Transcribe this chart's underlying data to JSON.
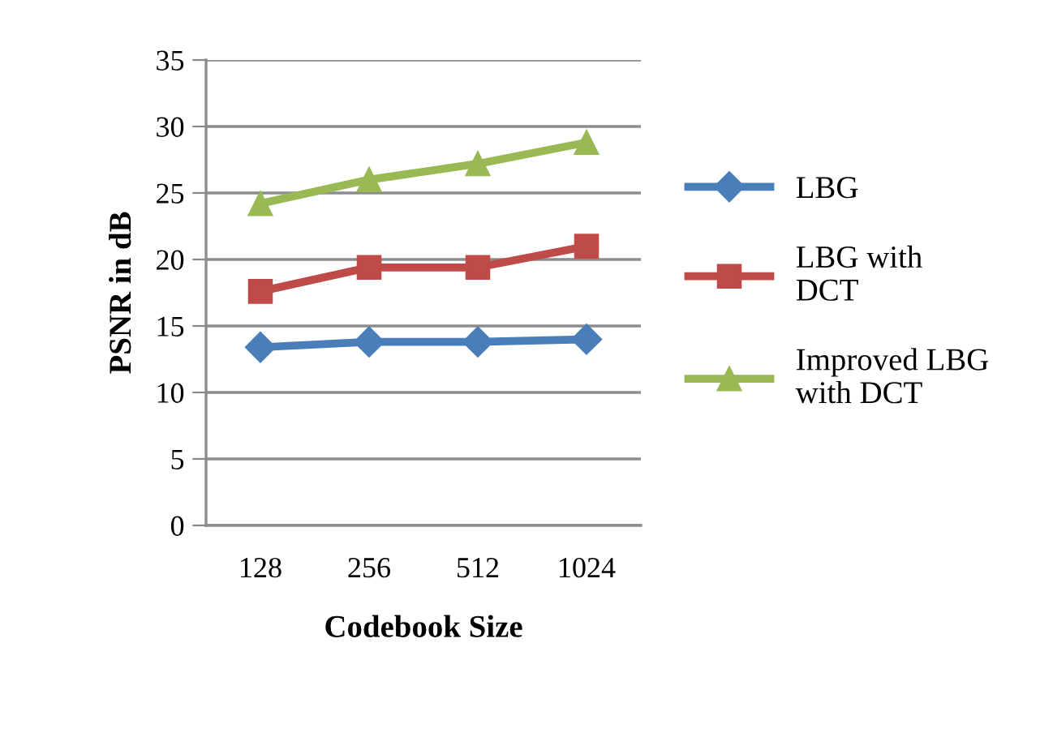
{
  "chart_data": {
    "type": "line",
    "xlabel": "Codebook Size",
    "ylabel": "PSNR in dB",
    "categories": [
      "128",
      "256",
      "512",
      "1024"
    ],
    "series": [
      {
        "name": "LBG",
        "color": "#4a7ebb",
        "marker": "diamond",
        "values": [
          13.4,
          13.8,
          13.8,
          14.0
        ]
      },
      {
        "name": "LBG with\nDCT",
        "color": "#be4b48",
        "marker": "square",
        "values": [
          17.6,
          19.4,
          19.4,
          21.0
        ]
      },
      {
        "name": "Improved LBG\nwith DCT",
        "color": "#98b954",
        "marker": "triangle",
        "values": [
          24.2,
          26.0,
          27.2,
          28.8
        ]
      }
    ],
    "ylim": [
      0,
      35
    ],
    "yticks": [
      0,
      5,
      10,
      15,
      20,
      25,
      30,
      35
    ],
    "grid": "y",
    "legend": "right",
    "line_style": "solid"
  }
}
